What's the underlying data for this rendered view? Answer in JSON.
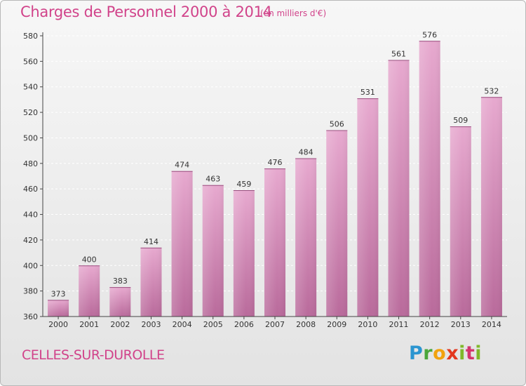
{
  "header": {
    "title": "Charges de Personnel 2000 à 2014",
    "subtitle": "(en milliers d'€)"
  },
  "footer": {
    "commune": "CELLES-SUR-DUROLLE",
    "logo_text": "Proxiti"
  },
  "colors": {
    "accent": "#d1438a",
    "bar_top": "#e7a9cf",
    "bar_bottom": "#b96a9b",
    "axis": "#444444",
    "grid": "#ffffff"
  },
  "chart_data": {
    "type": "bar",
    "title": "Charges de Personnel 2000 à 2014",
    "subtitle": "(en milliers d'€)",
    "xlabel": "",
    "ylabel": "",
    "categories": [
      "2000",
      "2001",
      "2002",
      "2003",
      "2004",
      "2005",
      "2006",
      "2007",
      "2008",
      "2009",
      "2010",
      "2011",
      "2012",
      "2013",
      "2014"
    ],
    "values": [
      373,
      400,
      383,
      414,
      474,
      463,
      459,
      476,
      484,
      506,
      531,
      561,
      576,
      509,
      532
    ],
    "ylim": [
      360,
      580
    ],
    "yticks": [
      360,
      380,
      400,
      420,
      440,
      460,
      480,
      500,
      520,
      540,
      560,
      580
    ],
    "grid": true,
    "data_labels": true
  }
}
